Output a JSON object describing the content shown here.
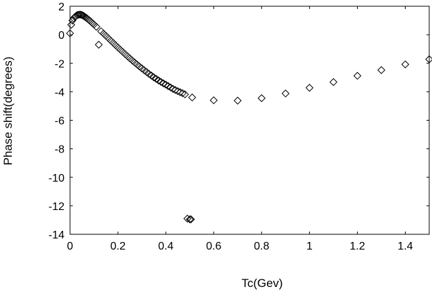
{
  "chart_data": {
    "type": "scatter",
    "title": "",
    "xlabel": "Tc(Gev)",
    "ylabel": "Phase shift(degrees)",
    "xlim": [
      0,
      1.5
    ],
    "ylim": [
      -14,
      2
    ],
    "grid": false,
    "marker": "diamond",
    "x_ticks": [
      "0",
      "0.2",
      "0.4",
      "0.6",
      "0.8",
      "1",
      "1.2",
      "1.4"
    ],
    "x_tick_values": [
      0,
      0.2,
      0.4,
      0.6,
      0.8,
      1.0,
      1.2,
      1.4
    ],
    "y_ticks": [
      "2",
      "0",
      "-2",
      "-4",
      "-6",
      "-8",
      "-10",
      "-12",
      "-14"
    ],
    "y_tick_values": [
      2,
      0,
      -2,
      -4,
      -6,
      -8,
      -10,
      -12,
      -14
    ],
    "series": [
      {
        "points": [
          [
            0.0,
            0.1
          ],
          [
            0.005,
            0.7
          ],
          [
            0.01,
            1.0
          ],
          [
            0.015,
            1.15
          ],
          [
            0.02,
            1.25
          ],
          [
            0.025,
            1.32
          ],
          [
            0.03,
            1.38
          ],
          [
            0.035,
            1.4
          ],
          [
            0.04,
            1.42
          ],
          [
            0.045,
            1.41
          ],
          [
            0.05,
            1.38
          ],
          [
            0.055,
            1.34
          ],
          [
            0.06,
            1.28
          ],
          [
            0.065,
            1.22
          ],
          [
            0.07,
            1.16
          ],
          [
            0.075,
            1.09
          ],
          [
            0.08,
            1.02
          ],
          [
            0.085,
            0.95
          ],
          [
            0.09,
            0.87
          ],
          [
            0.095,
            0.79
          ],
          [
            0.1,
            0.72
          ],
          [
            0.11,
            0.56
          ],
          [
            0.12,
            -0.7
          ],
          [
            0.13,
            0.24
          ],
          [
            0.14,
            0.08
          ],
          [
            0.15,
            -0.08
          ],
          [
            0.16,
            -0.24
          ],
          [
            0.17,
            -0.41
          ],
          [
            0.18,
            -0.57
          ],
          [
            0.19,
            -0.73
          ],
          [
            0.2,
            -0.89
          ],
          [
            0.21,
            -1.05
          ],
          [
            0.22,
            -1.2
          ],
          [
            0.23,
            -1.36
          ],
          [
            0.24,
            -1.51
          ],
          [
            0.25,
            -1.66
          ],
          [
            0.26,
            -1.81
          ],
          [
            0.27,
            -1.95
          ],
          [
            0.28,
            -2.09
          ],
          [
            0.29,
            -2.23
          ],
          [
            0.3,
            -2.36
          ],
          [
            0.31,
            -2.49
          ],
          [
            0.32,
            -2.62
          ],
          [
            0.33,
            -2.75
          ],
          [
            0.34,
            -2.87
          ],
          [
            0.35,
            -2.99
          ],
          [
            0.36,
            -3.1
          ],
          [
            0.37,
            -3.21
          ],
          [
            0.38,
            -3.31
          ],
          [
            0.39,
            -3.41
          ],
          [
            0.4,
            -3.5
          ],
          [
            0.41,
            -3.6
          ],
          [
            0.42,
            -3.7
          ],
          [
            0.43,
            -3.8
          ],
          [
            0.44,
            -3.88
          ],
          [
            0.45,
            -3.96
          ],
          [
            0.46,
            -4.03
          ],
          [
            0.47,
            -4.1
          ],
          [
            0.48,
            -4.18
          ],
          [
            0.49,
            -12.9
          ],
          [
            0.5,
            -12.95
          ],
          [
            0.505,
            -12.95
          ],
          [
            0.51,
            -4.4
          ],
          [
            0.6,
            -4.6
          ],
          [
            0.7,
            -4.62
          ],
          [
            0.8,
            -4.45
          ],
          [
            0.9,
            -4.12
          ],
          [
            1.0,
            -3.72
          ],
          [
            1.1,
            -3.32
          ],
          [
            1.2,
            -2.88
          ],
          [
            1.3,
            -2.48
          ],
          [
            1.4,
            -2.08
          ],
          [
            1.5,
            -1.72
          ]
        ]
      }
    ]
  }
}
